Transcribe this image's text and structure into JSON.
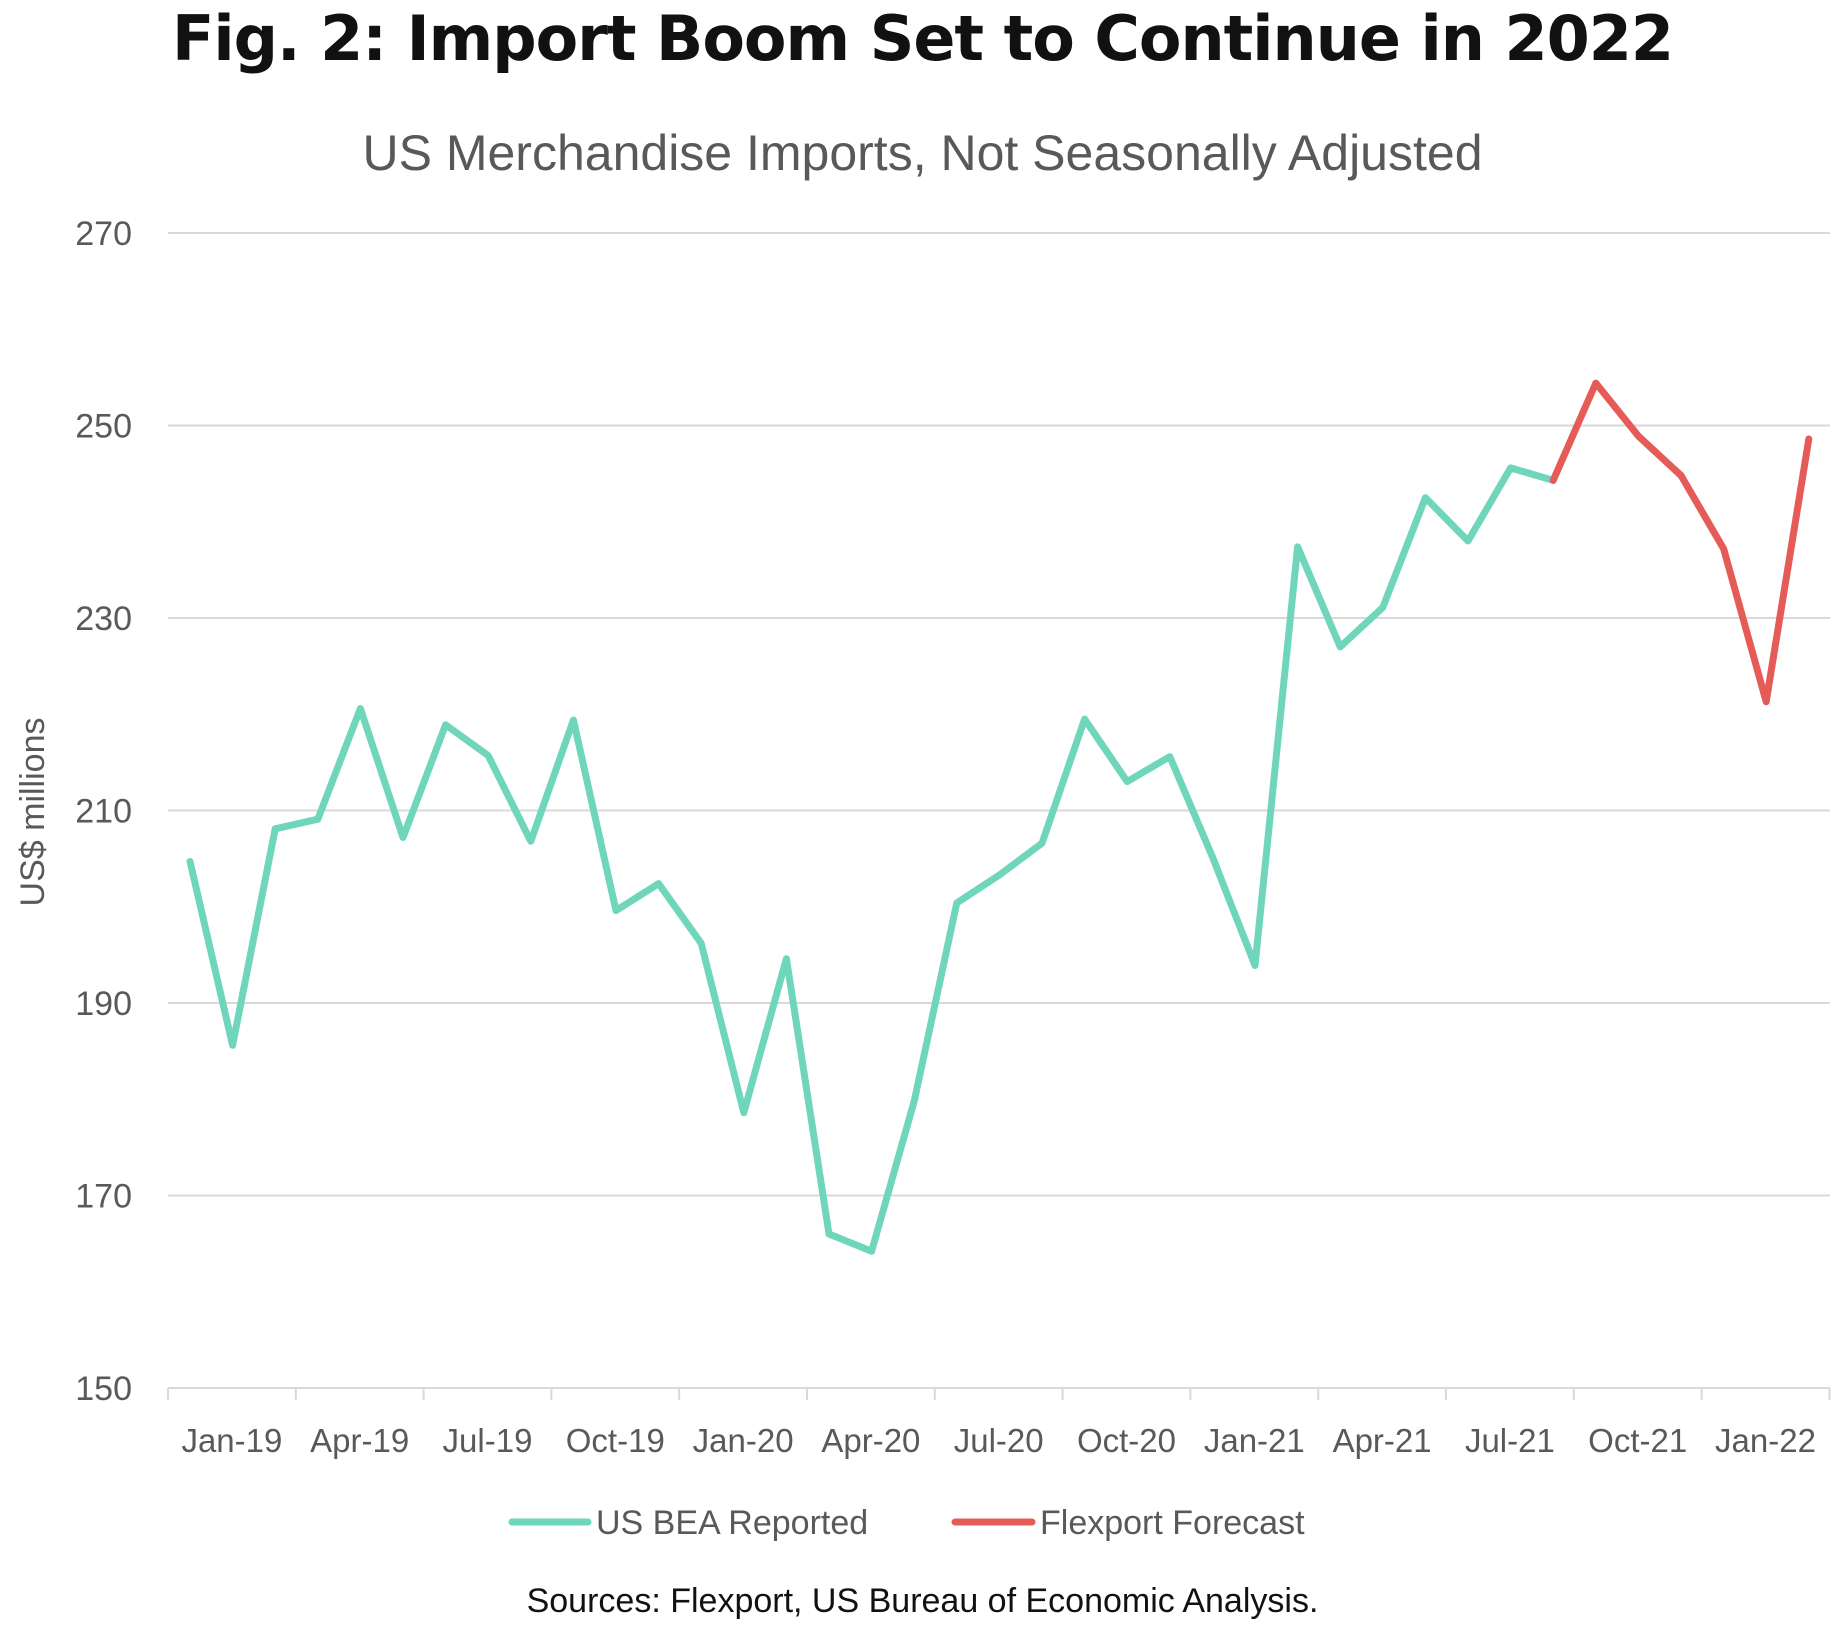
{
  "chart_data": {
    "type": "line",
    "title": "Fig. 2: Import Boom Set to Continue in 2022",
    "subtitle": "US Merchandise Imports, Not Seasonally Adjusted",
    "xlabel": "",
    "ylabel": "US$ millions",
    "ylim": [
      150,
      270
    ],
    "y_ticks": [
      150,
      170,
      190,
      210,
      230,
      250,
      270
    ],
    "x_ticks": [
      "Jan-19",
      "Apr-19",
      "Jul-19",
      "Oct-19",
      "Jan-20",
      "Apr-20",
      "Jul-20",
      "Oct-20",
      "Jan-21",
      "Apr-21",
      "Jul-21",
      "Oct-21",
      "Jan-22"
    ],
    "grid": true,
    "legend_position": "bottom",
    "series": [
      {
        "name": "US BEA Reported",
        "color": "#6fd6bc",
        "start_month_index": 0,
        "values": [
          204.7,
          185.6,
          208.1,
          209.1,
          220.6,
          207.2,
          218.9,
          215.7,
          206.8,
          219.4,
          199.6,
          202.4,
          196.2,
          178.6,
          194.6,
          166.0,
          164.2,
          179.8,
          200.4,
          203.3,
          206.6,
          219.5,
          213.0,
          215.6,
          205.2,
          193.9,
          237.4,
          227.0,
          231.1,
          242.5,
          238.0,
          245.6,
          244.3
        ]
      },
      {
        "name": "Flexport Forecast",
        "color": "#e55b57",
        "start_month_index": 32,
        "values": [
          244.3,
          254.4,
          248.9,
          244.8,
          237.2,
          221.3,
          248.6
        ]
      }
    ],
    "source": "Sources: Flexport, US Bureau of Economic Analysis."
  }
}
